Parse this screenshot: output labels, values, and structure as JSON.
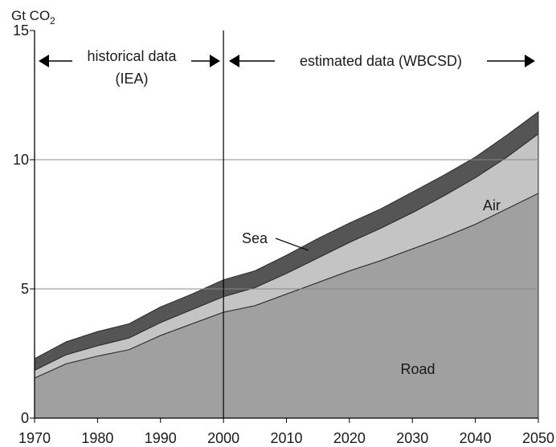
{
  "chart_data": {
    "type": "area",
    "stacked": true,
    "ylabel": "Gt CO",
    "ylabel_subscript": "2",
    "ylim": [
      0,
      15
    ],
    "xlim": [
      1970,
      2050
    ],
    "y_ticks": [
      "0",
      "5",
      "10",
      "15"
    ],
    "x_ticks": [
      "1970",
      "1980",
      "1990",
      "2000",
      "2010",
      "2020",
      "2030",
      "2040",
      "2050"
    ],
    "grid": {
      "horizontal_at": [
        5,
        10
      ]
    },
    "x": [
      1970,
      1975,
      1980,
      1985,
      1990,
      1995,
      2000,
      2005,
      2010,
      2015,
      2020,
      2025,
      2030,
      2035,
      2040,
      2045,
      2050
    ],
    "series": [
      {
        "name": "Road",
        "color": "#a0a0a0",
        "values": [
          1.55,
          2.1,
          2.4,
          2.65,
          3.2,
          3.65,
          4.1,
          4.35,
          4.8,
          5.25,
          5.7,
          6.1,
          6.55,
          7.0,
          7.5,
          8.1,
          8.7
        ]
      },
      {
        "name": "Air",
        "color": "#c4c4c4",
        "values": [
          0.3,
          0.35,
          0.4,
          0.45,
          0.5,
          0.55,
          0.6,
          0.7,
          0.8,
          0.95,
          1.1,
          1.25,
          1.4,
          1.6,
          1.8,
          2.0,
          2.3
        ]
      },
      {
        "name": "Sea",
        "color": "#555555",
        "values": [
          0.45,
          0.5,
          0.55,
          0.55,
          0.6,
          0.6,
          0.65,
          0.65,
          0.7,
          0.75,
          0.75,
          0.75,
          0.8,
          0.8,
          0.8,
          0.85,
          0.85
        ]
      }
    ],
    "divider_at": 2000,
    "annotations": {
      "historical_line1": "historical data",
      "historical_line2": "(IEA)",
      "estimated": "estimated data (WBCSD)"
    }
  }
}
